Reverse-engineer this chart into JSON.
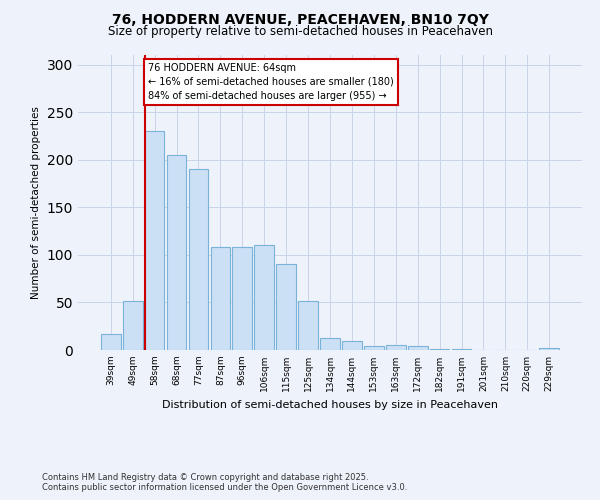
{
  "title": "76, HODDERN AVENUE, PEACEHAVEN, BN10 7QY",
  "subtitle": "Size of property relative to semi-detached houses in Peacehaven",
  "xlabel": "Distribution of semi-detached houses by size in Peacehaven",
  "ylabel": "Number of semi-detached properties",
  "categories": [
    "39sqm",
    "49sqm",
    "58sqm",
    "68sqm",
    "77sqm",
    "87sqm",
    "96sqm",
    "106sqm",
    "115sqm",
    "125sqm",
    "134sqm",
    "144sqm",
    "153sqm",
    "163sqm",
    "172sqm",
    "182sqm",
    "191sqm",
    "201sqm",
    "210sqm",
    "220sqm",
    "229sqm"
  ],
  "values": [
    17,
    52,
    230,
    205,
    190,
    108,
    108,
    110,
    90,
    52,
    13,
    9,
    4,
    5,
    4,
    1,
    1,
    0,
    0,
    0,
    2
  ],
  "bar_color": "#cce0f5",
  "bar_edge_color": "#7ab3d9",
  "annotation_line_color": "#cc0000",
  "redline_x": 1.55,
  "ylim": [
    0,
    310
  ],
  "yticks": [
    0,
    50,
    100,
    150,
    200,
    250,
    300
  ],
  "grid_color": "#c8d4e8",
  "background_color": "#eef2fa",
  "footnote1": "Contains HM Land Registry data © Crown copyright and database right 2025.",
  "footnote2": "Contains public sector information licensed under the Open Government Licence v3.0."
}
